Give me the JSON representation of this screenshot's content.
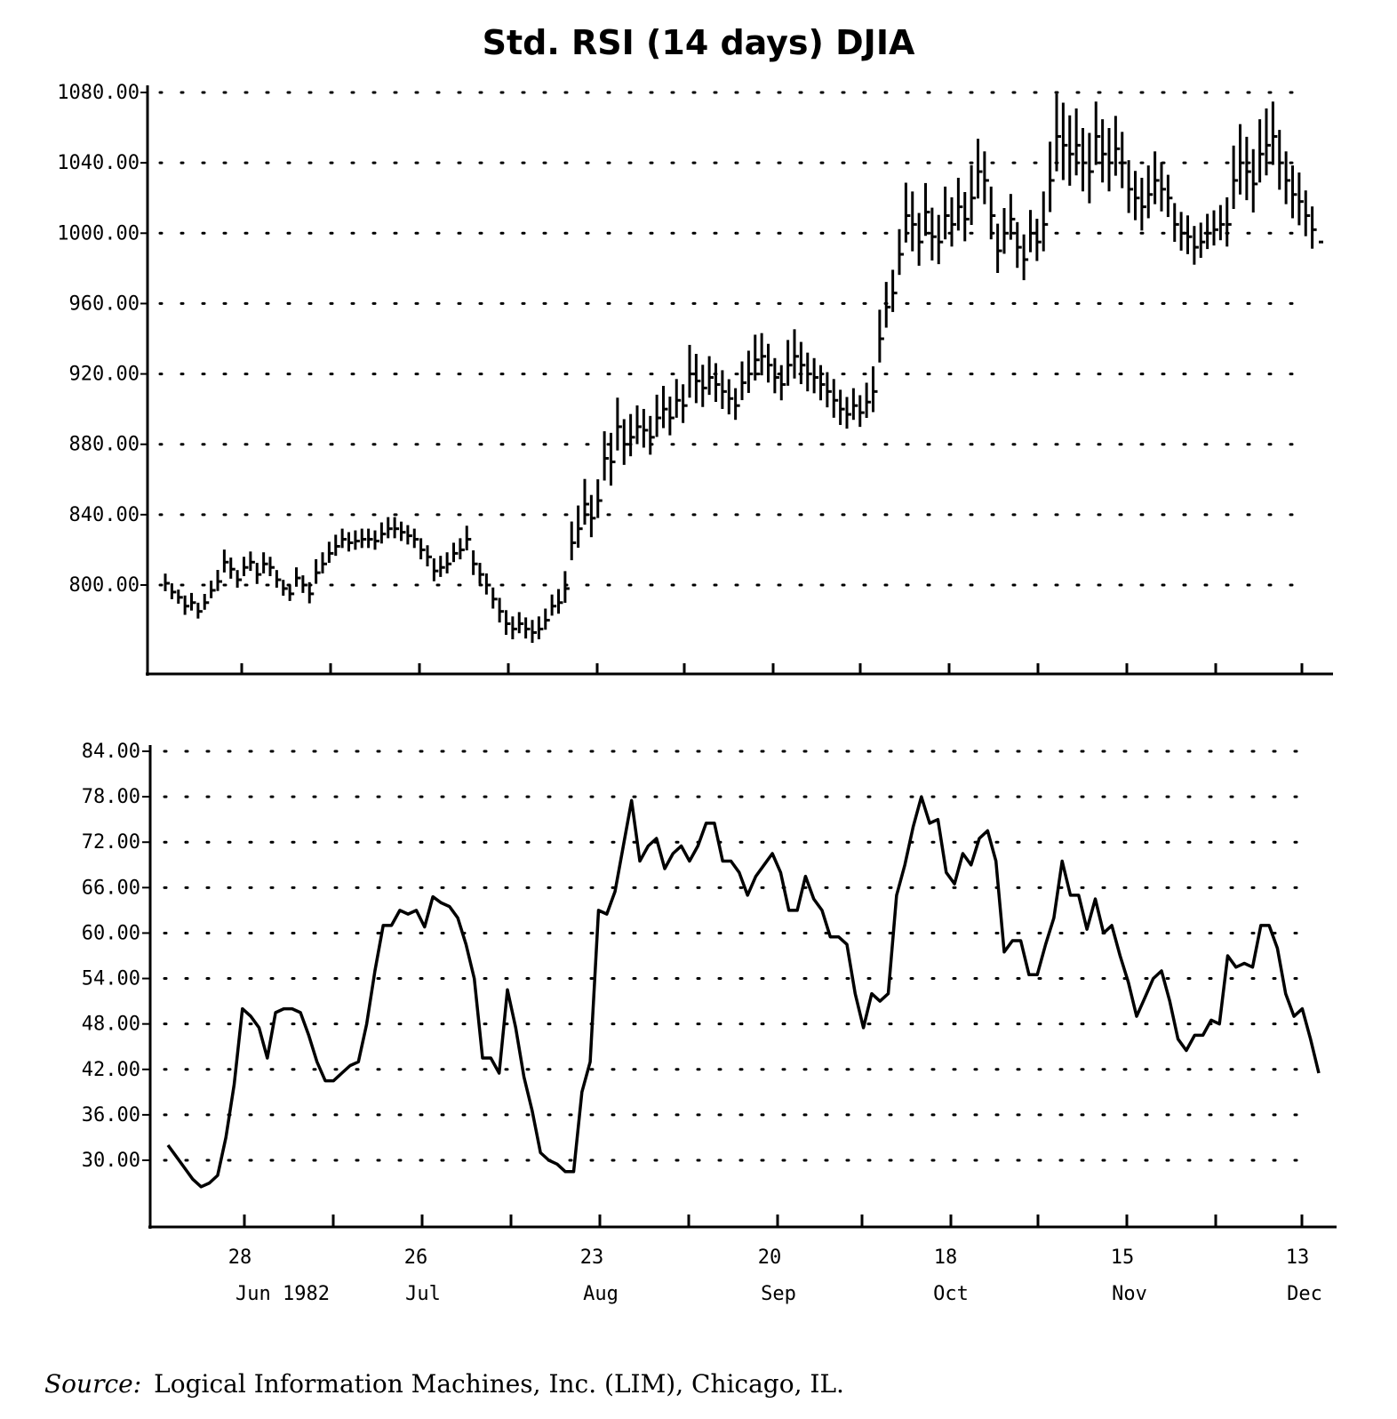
{
  "chart_data": [
    {
      "type": "ohlc",
      "title": "Std. RSI (14 days) DJIA",
      "ylim": [
        760,
        1080
      ],
      "yticks": [
        "1080.00",
        "1040.00",
        "1000.00",
        "960.00",
        "920.00",
        "880.00",
        "840.00",
        "800.00"
      ],
      "grid": true,
      "series": [
        {
          "high": [
            812,
            808
          ],
          "low": [
            796,
            792
          ]
        }
      ],
      "close": [
        801,
        796,
        793,
        788,
        790,
        785,
        790,
        797,
        802,
        813,
        809,
        803,
        810,
        813,
        806,
        812,
        810,
        803,
        798,
        795,
        804,
        800,
        795,
        807,
        812,
        818,
        822,
        826,
        824,
        825,
        826,
        826,
        825,
        829,
        832,
        832,
        830,
        828,
        826,
        820,
        816,
        808,
        810,
        812,
        818,
        820,
        826,
        812,
        806,
        800,
        792,
        785,
        778,
        775,
        778,
        775,
        773,
        775,
        780,
        788,
        790,
        798,
        824,
        832,
        846,
        838,
        848,
        872,
        870,
        890,
        880,
        884,
        890,
        888,
        884,
        895,
        900,
        895,
        905,
        902,
        920,
        916,
        912,
        918,
        914,
        910,
        906,
        902,
        915,
        920,
        928,
        930,
        925,
        918,
        914,
        925,
        930,
        925,
        920,
        918,
        914,
        910,
        905,
        900,
        897,
        902,
        898,
        904,
        910,
        940,
        958,
        966,
        988,
        1010,
        1005,
        995,
        1012,
        998,
        995,
        1010,
        1005,
        1015,
        1008,
        1020,
        1035,
        1030,
        1010,
        990,
        1000,
        1008,
        992,
        985,
        1000,
        995,
        1005,
        1030,
        1055,
        1050,
        1045,
        1050,
        1040,
        1035,
        1055,
        1045,
        1040,
        1048,
        1040,
        1025,
        1020,
        1015,
        1022,
        1030,
        1025,
        1020,
        1005,
        1000,
        998,
        992,
        995,
        1000,
        1002,
        1005,
        1005,
        1030,
        1040,
        1035,
        1028,
        1045,
        1050,
        1055,
        1040,
        1030,
        1022,
        1018,
        1010,
        1002,
        995
      ],
      "range": [
        10,
        9,
        8,
        11,
        10,
        9,
        9,
        10,
        12,
        13,
        12,
        10,
        11,
        11,
        12,
        12,
        11,
        10,
        9,
        9,
        11,
        10,
        12,
        14,
        12,
        12,
        12,
        11,
        11,
        11,
        11,
        11,
        11,
        12,
        12,
        12,
        11,
        11,
        11,
        12,
        12,
        13,
        12,
        12,
        11,
        12,
        14,
        14,
        12,
        12,
        12,
        14,
        14,
        13,
        12,
        12,
        13,
        13,
        12,
        12,
        14,
        18,
        22,
        24,
        26,
        24,
        22,
        28,
        30,
        30,
        26,
        24,
        22,
        22,
        22,
        24,
        24,
        22,
        22,
        22,
        30,
        28,
        24,
        22,
        22,
        22,
        20,
        18,
        22,
        24,
        26,
        24,
        22,
        20,
        20,
        26,
        28,
        24,
        22,
        20,
        20,
        20,
        22,
        20,
        18,
        18,
        18,
        20,
        26,
        30,
        26,
        24,
        26,
        34,
        34,
        30,
        30,
        30,
        28,
        30,
        28,
        30,
        28,
        34,
        34,
        30,
        30,
        28,
        26,
        26,
        26,
        26,
        24,
        24,
        34,
        40,
        44,
        44,
        40,
        38,
        36,
        40,
        36,
        36,
        36,
        34,
        32,
        30,
        28,
        30,
        30,
        30,
        28,
        24,
        22,
        22,
        22,
        22,
        20,
        20,
        20,
        20,
        28,
        36,
        40,
        36,
        36,
        36,
        38,
        36,
        34,
        30,
        30,
        30,
        26,
        24
      ],
      "xticks": [
        "28",
        "26",
        "23",
        "20",
        "18",
        "15",
        "13"
      ],
      "months": [
        "Jun 1982",
        "Jul",
        "Aug",
        "Sep",
        "Oct",
        "Nov",
        "Dec"
      ]
    },
    {
      "type": "line",
      "ylim": [
        21,
        84
      ],
      "yticks": [
        "84.00",
        "78.00",
        "72.00",
        "66.00",
        "60.00",
        "54.00",
        "48.00",
        "42.00",
        "36.00",
        "30.00"
      ],
      "grid": true,
      "xticks": [
        "28",
        "26",
        "23",
        "20",
        "18",
        "15",
        "13"
      ],
      "months": [
        "Jun 1982",
        "Jul",
        "Aug",
        "Sep",
        "Oct",
        "Nov",
        "Dec"
      ],
      "series": [
        {
          "values": [
            32,
            30.5,
            29,
            27.5,
            26.5,
            27,
            28,
            33,
            40,
            50,
            49,
            47.5,
            43.5,
            49.5,
            50,
            50,
            49.5,
            46.5,
            43,
            40.5,
            40.5,
            41.5,
            42.5,
            43,
            48,
            55,
            61,
            61,
            63,
            62.5,
            63,
            60.8,
            64.8,
            64,
            63.5,
            62,
            58.5,
            54,
            43.5,
            43.5,
            41.5,
            52.5,
            47.5,
            41,
            36.5,
            31,
            30,
            29.5,
            28.5,
            28.5,
            39,
            43,
            63,
            62.5,
            65.5,
            71.5,
            77.5,
            69.5,
            71.5,
            72.5,
            68.5,
            70.5,
            71.5,
            69.5,
            71.5,
            74.5,
            74.5,
            69.5,
            69.5,
            68,
            65,
            67.5,
            69,
            70.5,
            68,
            63,
            63,
            67.5,
            64.5,
            63,
            59.5,
            59.5,
            58.5,
            52,
            47.5,
            52,
            51,
            52,
            65,
            69,
            74,
            78,
            74.5,
            75,
            68,
            66.5,
            70.5,
            69,
            72.5,
            73.5,
            69.5,
            57.5,
            59,
            59,
            54.5,
            54.5,
            58.5,
            62,
            69.5,
            65,
            65,
            60.5,
            64.5,
            60,
            61,
            57,
            53.5,
            49,
            51.5,
            54,
            55,
            51,
            46,
            44.5,
            46.5,
            46.5,
            48.5,
            48,
            57,
            55.5,
            56,
            55.5,
            61,
            61,
            58,
            52,
            49,
            50,
            46,
            41.5
          ]
        }
      ]
    }
  ],
  "source": {
    "label": "Source:",
    "text": "Logical Information Machines, Inc. (LIM), Chicago, IL."
  }
}
